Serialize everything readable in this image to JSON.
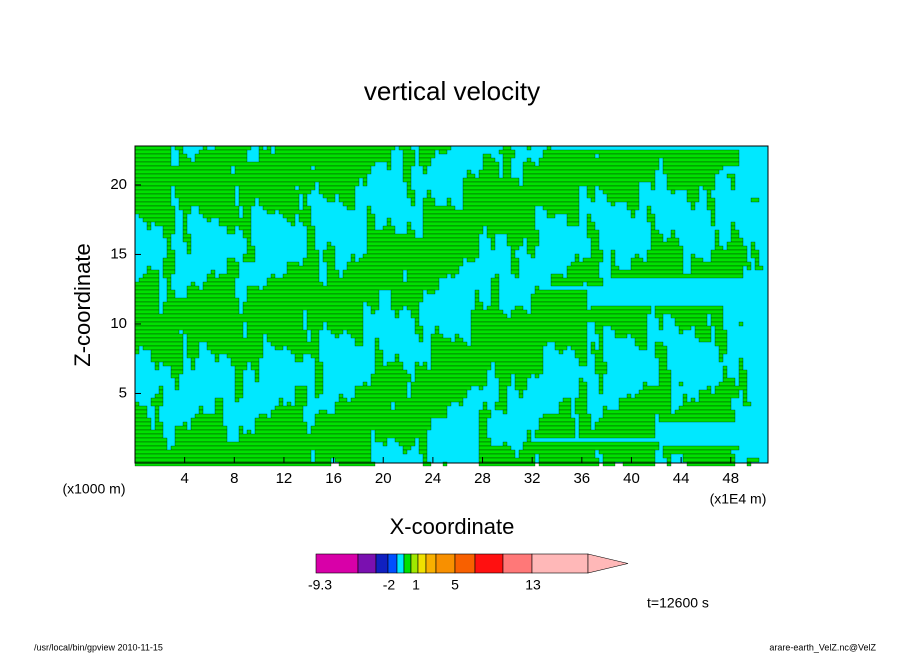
{
  "chart_data": {
    "type": "contour",
    "title": "vertical velocity",
    "x_label": "X-coordinate",
    "y_label": "Z-coordinate",
    "x_unit": "(x1E4 m)",
    "y_unit": "(x1000 m)",
    "xlim": [
      0,
      51
    ],
    "ylim": [
      0,
      22.8
    ],
    "xticks": [
      4,
      8,
      12,
      16,
      20,
      24,
      28,
      32,
      36,
      40,
      44,
      48
    ],
    "yticks": [
      5,
      10,
      15,
      20
    ],
    "colorbar": {
      "colors": [
        "#d800a8",
        "#7a10b0",
        "#1020c0",
        "#0050ff",
        "#00e8ff",
        "#00e000",
        "#a0e800",
        "#f0e000",
        "#f8b000",
        "#f89000",
        "#f86000",
        "#ff1010",
        "#ff7878",
        "#ffb8b8"
      ],
      "labels": [
        -9.3,
        -2,
        1,
        5,
        13
      ]
    },
    "time_label": "t=12600 s",
    "footer_left": "/usr/local/bin/gpview  2010-11-15",
    "footer_right": "arare-earth_VelZ.nc@VelZ"
  }
}
